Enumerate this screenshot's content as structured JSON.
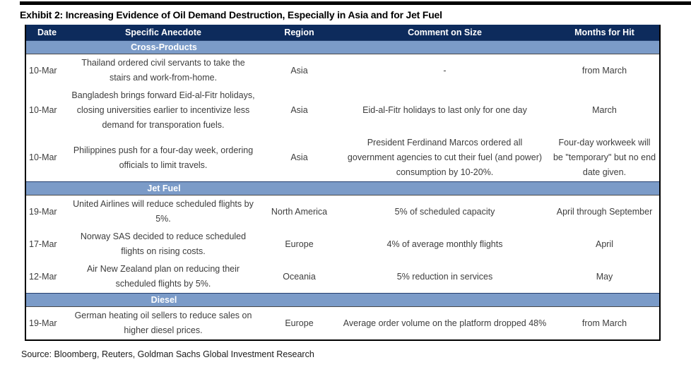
{
  "title": "Exhibit 2: Increasing Evidence of Oil Demand Destruction, Especially in Asia and for Jet Fuel",
  "source": "Source: Bloomberg, Reuters, Goldman Sachs Global Investment Research",
  "colors": {
    "header_bg": "#0d2b5c",
    "section_band_bg": "#7b9bc8",
    "border": "#000000",
    "body_text": "#3d3d3d"
  },
  "table": {
    "columns": [
      "Date",
      "Specific Anecdote",
      "Region",
      "Comment on Size",
      "Months for Hit"
    ],
    "sections": [
      {
        "label": "Cross-Products",
        "rows": [
          [
            "10-Mar",
            "Thailand ordered civil servants to take the stairs and work-from-home.",
            "Asia",
            "-",
            "from March"
          ],
          [
            "10-Mar",
            "Bangladesh brings forward Eid-al-Fitr holidays, closing universities earlier to incentivize less demand for transporation fuels.",
            "Asia",
            "Eid-al-Fitr holidays to last only for one day",
            "March"
          ],
          [
            "10-Mar",
            "Philippines push for a four-day week, ordering officials to limit travels.",
            "Asia",
            "President Ferdinand Marcos ordered all government agencies to cut their fuel (and power) consumption by 10-20%.",
            "Four-day workweek will be \"temporary\" but no end date given."
          ]
        ]
      },
      {
        "label": "Jet Fuel",
        "rows": [
          [
            "19-Mar",
            "United Airlines will reduce scheduled flights by 5%.",
            "North America",
            "5% of scheduled capacity",
            "April through September"
          ],
          [
            "17-Mar",
            "Norway SAS decided to reduce scheduled flights on rising costs.",
            "Europe",
            "4% of average monthly flights",
            "April"
          ],
          [
            "12-Mar",
            "Air New Zealand plan on reducing their scheduled flights by 5%.",
            "Oceania",
            "5% reduction in services",
            "May"
          ]
        ]
      },
      {
        "label": "Diesel",
        "rows": [
          [
            "19-Mar",
            "German heating oil sellers to reduce sales on higher diesel prices.",
            "Europe",
            "Average order volume on the platform dropped 48%",
            "from March"
          ]
        ]
      }
    ]
  }
}
